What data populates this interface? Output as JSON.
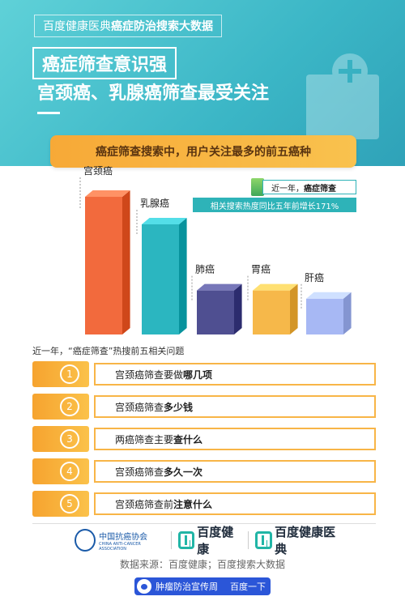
{
  "header": {
    "brand_prefix": "百度健康医典",
    "brand_bold": "癌症防治搜索大数据",
    "title_line1": "癌症筛查意识强",
    "title_line2": "宫颈癌、乳腺癌筛查最受关注"
  },
  "banner": "癌症筛查搜索中，用户关注最多的前五癌种",
  "chart_data": {
    "type": "bar",
    "categories": [
      "宫颈癌",
      "乳腺癌",
      "肺癌",
      "胃癌",
      "肝癌"
    ],
    "values": [
      5,
      4,
      1.6,
      1.6,
      1.3
    ],
    "colors": [
      "#f26a3d",
      "#2bb6c0",
      "#4f4f91",
      "#f6b84a",
      "#a7b8f4"
    ]
  },
  "notes": {
    "note1_prefix": "近一年，",
    "note1_bold": "癌症筛查",
    "note2": "相关搜索热度同比五年前增长171%"
  },
  "questions_label": "近一年，“癌症筛查”热搜前五相关问题",
  "questions": [
    {
      "num": "1",
      "prefix": "宫颈癌筛查要做",
      "bold": "哪几项"
    },
    {
      "num": "2",
      "prefix": "宫颈癌筛查",
      "bold": "多少钱"
    },
    {
      "num": "3",
      "prefix": "两癌筛查主要",
      "bold": "查什么"
    },
    {
      "num": "4",
      "prefix": "宫颈癌筛查",
      "bold": "多久一次"
    },
    {
      "num": "5",
      "prefix": "宫颈癌筛查前",
      "bold": "注意什么"
    }
  ],
  "footer": {
    "logo1": "中国抗癌协会",
    "logo1_en": "CHINA ANTI-CANCER ASSOCIATION",
    "logo2": "百度健康",
    "logo3": "百度健康医典",
    "source": "数据来源：百度健康；百度搜索大数据",
    "week_label": "肿瘤防治宣传周",
    "week_brand": "百度一下"
  }
}
